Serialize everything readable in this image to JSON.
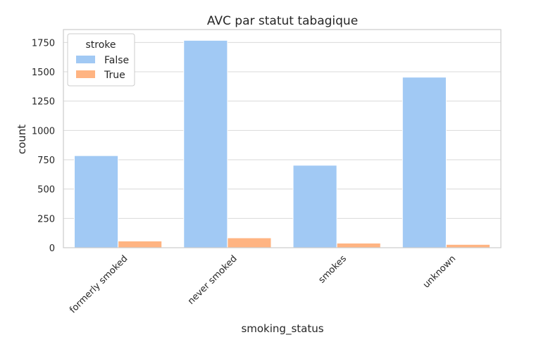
{
  "chart_data": {
    "type": "bar",
    "title": "AVC par statut tabagique",
    "xlabel": "smoking_status",
    "ylabel": "count",
    "categories": [
      "formerly smoked",
      "never smoked",
      "smokes",
      "unknown"
    ],
    "series": [
      {
        "name": "False",
        "values": [
          785,
          1768,
          703,
          1454
        ],
        "color": "#a1c9f4"
      },
      {
        "name": "True",
        "values": [
          57,
          84,
          39,
          28
        ],
        "color": "#ffb482"
      }
    ],
    "ylim": [
      0,
      1860
    ],
    "yticks": [
      0,
      250,
      500,
      750,
      1000,
      1250,
      1500,
      1750
    ],
    "grid": true,
    "legend": {
      "title": "stroke",
      "placement": "top-left"
    }
  }
}
